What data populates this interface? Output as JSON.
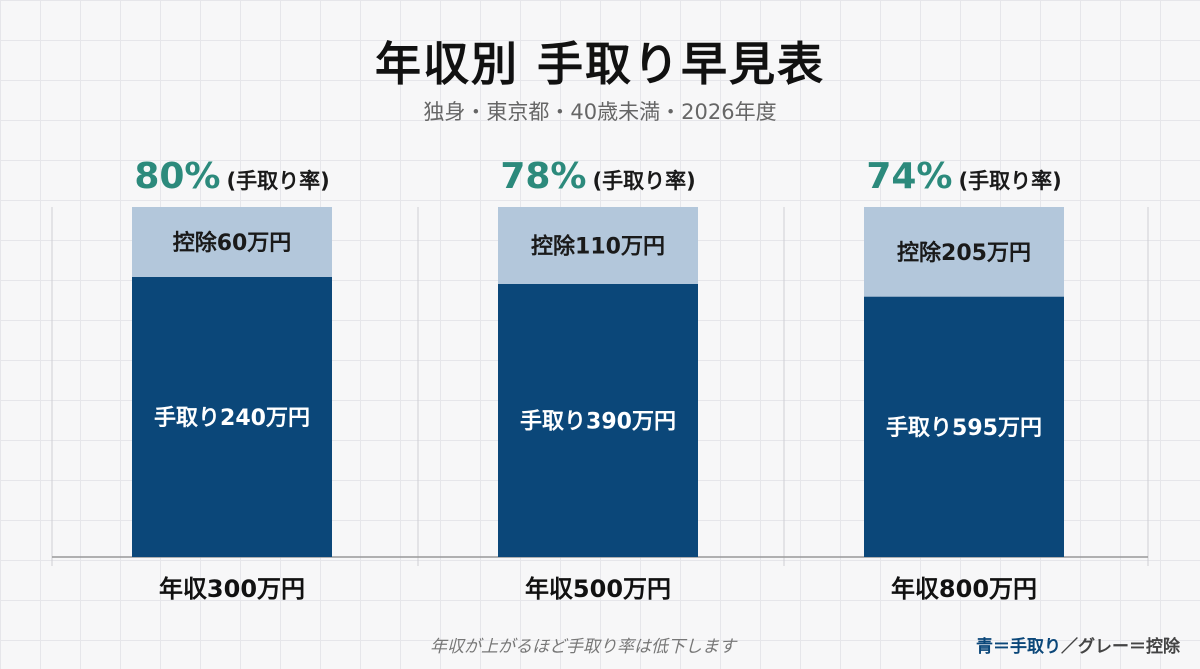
{
  "title": "年収別 手取り早見表",
  "subtitle": "独身・東京都・40歳未満・2026年度",
  "rate_suffix": "(手取り率)",
  "colors": {
    "net": "#0b4779",
    "deduction": "#b3c7db",
    "rate": "#2c8a7c"
  },
  "chart_data": {
    "type": "bar",
    "stacked": true,
    "categories": [
      "年収300万円",
      "年収500万円",
      "年収800万円"
    ],
    "series": [
      {
        "key": "net",
        "values": [
          240,
          390,
          595
        ]
      },
      {
        "key": "deduction",
        "values": [
          60,
          110,
          205
        ]
      }
    ],
    "bar_labels": {
      "net": [
        "手取り240万円",
        "手取り390万円",
        "手取り595万円"
      ],
      "deduction": [
        "控除60万円",
        "控除110万円",
        "控除205万円"
      ]
    },
    "rates": [
      "80%",
      "78%",
      "74%"
    ]
  },
  "footer": {
    "note": "年収が上がるほど手取り率は低下します",
    "legend_blue": "青＝手取り",
    "legend_sep": "／",
    "legend_gray": "グレー＝控除"
  }
}
